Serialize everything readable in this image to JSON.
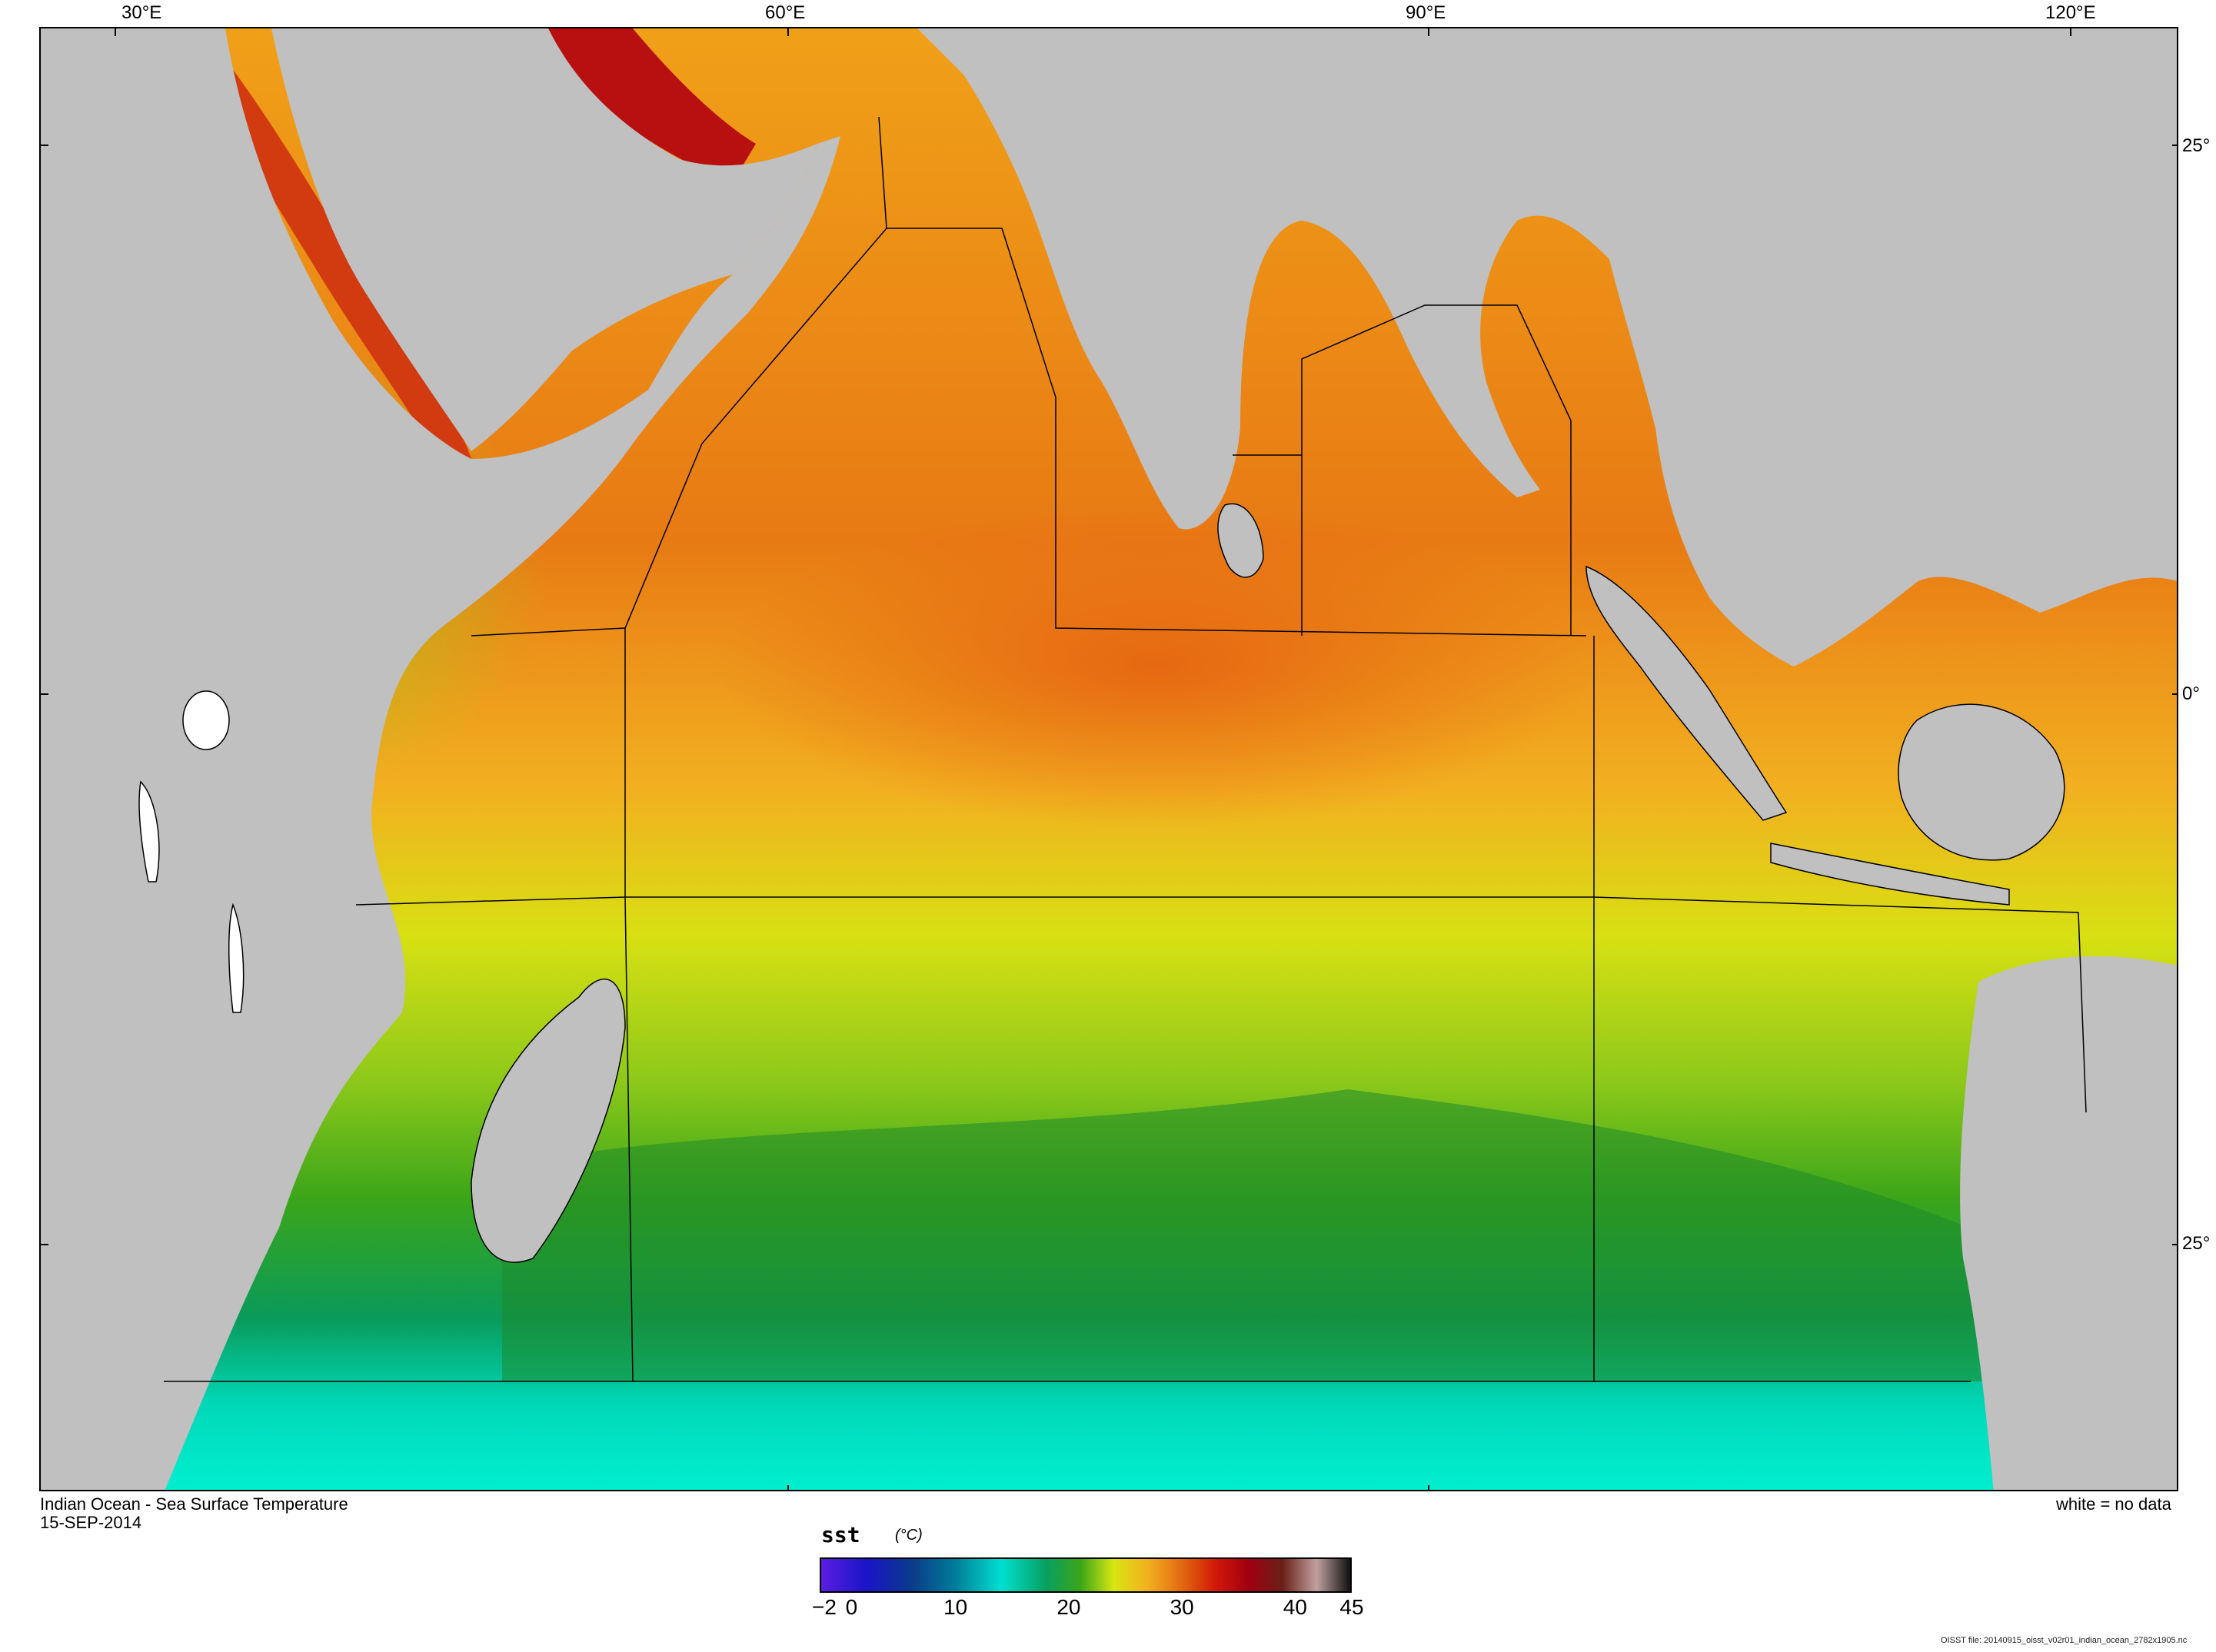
{
  "map": {
    "region": "Indian Ocean",
    "variable": "Sea Surface Temperature",
    "title": "Indian Ocean - Sea Surface Temperature",
    "date": "15-SEP-2014",
    "no_data_note": "white = no data",
    "longitude_labels": [
      "30°E",
      "60°E",
      "90°E",
      "120°E"
    ],
    "latitude_labels": [
      "25°",
      "0°",
      "25°"
    ],
    "land_color": "#c0c0c0",
    "no_data_color": "#ffffff",
    "source_file": "OISST file: 20140915_oisst_v02r01_indian_ocean_2782x1905.nc"
  },
  "colorbar": {
    "variable": "sst",
    "unit": "(°C)",
    "range": [
      -2,
      45
    ],
    "tick_labels": [
      "−2",
      "0",
      "10",
      "20",
      "30",
      "40",
      "45"
    ],
    "tick_values": [
      -2,
      0,
      10,
      20,
      30,
      40,
      45
    ],
    "color_stops": [
      {
        "value": -2,
        "color": "#5a1ee0"
      },
      {
        "value": 2,
        "color": "#1a14c8"
      },
      {
        "value": 6,
        "color": "#0a3a8a"
      },
      {
        "value": 10,
        "color": "#007f9a"
      },
      {
        "value": 14,
        "color": "#00e0d0"
      },
      {
        "value": 18,
        "color": "#07a060"
      },
      {
        "value": 21,
        "color": "#3aa51a"
      },
      {
        "value": 24,
        "color": "#d8e610"
      },
      {
        "value": 27,
        "color": "#f2b020"
      },
      {
        "value": 30,
        "color": "#e26a10"
      },
      {
        "value": 33,
        "color": "#d21808"
      },
      {
        "value": 36,
        "color": "#a00010"
      },
      {
        "value": 39,
        "color": "#6a2018"
      },
      {
        "value": 42,
        "color": "#c0a0a0"
      },
      {
        "value": 45,
        "color": "#101010"
      }
    ]
  }
}
